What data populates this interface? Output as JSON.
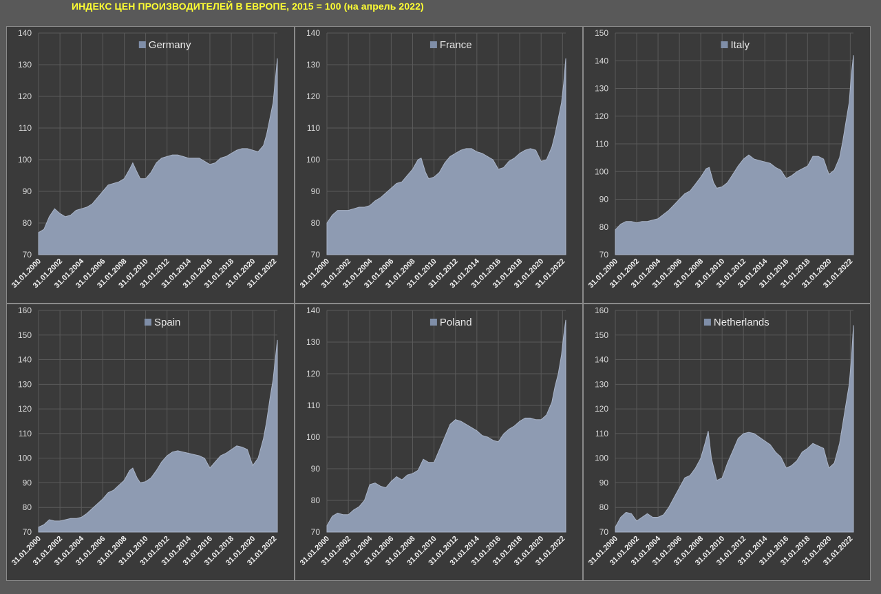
{
  "page": {
    "title": "ИНДЕКС ЦЕН ПРОИЗВОДИТЕЛЕЙ В ЕВРОПЕ, 2015 = 100 (на апрель 2022)"
  },
  "colors": {
    "area": "#8e9bb2",
    "area_edge": "#a9b4c8",
    "legend_swatch": "#7f8ea8",
    "grid": "#5a5a5a",
    "panel_bg": "#3a3a3a"
  },
  "chart_data": [
    {
      "type": "area",
      "legend": "Germany",
      "ylim": [
        70,
        140
      ],
      "yticks": [
        70,
        80,
        90,
        100,
        110,
        120,
        130,
        140
      ],
      "xlim": [
        2000.0,
        2022.3
      ],
      "xticks": [
        "31.01.2000",
        "31.01.2002",
        "31.01.2004",
        "31.01.2006",
        "31.01.2008",
        "31.01.2010",
        "31.01.2012",
        "31.01.2014",
        "31.01.2016",
        "31.01.2018",
        "31.01.2020",
        "31.01.2022"
      ],
      "x": [
        2000.0,
        2000.5,
        2001.0,
        2001.5,
        2002.0,
        2002.5,
        2003.0,
        2003.5,
        2004.0,
        2004.5,
        2005.0,
        2005.5,
        2006.0,
        2006.5,
        2007.0,
        2007.5,
        2008.0,
        2008.5,
        2008.8,
        2009.2,
        2009.5,
        2010.0,
        2010.5,
        2011.0,
        2011.5,
        2012.0,
        2012.5,
        2013.0,
        2013.5,
        2014.0,
        2014.5,
        2015.0,
        2015.5,
        2016.0,
        2016.5,
        2017.0,
        2017.5,
        2018.0,
        2018.5,
        2019.0,
        2019.5,
        2020.0,
        2020.5,
        2021.0,
        2021.3,
        2021.6,
        2021.9,
        2022.1,
        2022.3
      ],
      "y": [
        77,
        78,
        82,
        84.5,
        83,
        82,
        82.5,
        84,
        84.5,
        85,
        86,
        88,
        90,
        92,
        92.5,
        93,
        94,
        97,
        99,
        96,
        94,
        94,
        96,
        99,
        100.5,
        101,
        101.5,
        101.5,
        101,
        100.5,
        100.5,
        100.5,
        99.5,
        98.5,
        99,
        100.5,
        101,
        102,
        103,
        103.5,
        103.5,
        103,
        102.5,
        104.5,
        108,
        113,
        118,
        125,
        132
      ]
    },
    {
      "type": "area",
      "legend": "France",
      "ylim": [
        70,
        140
      ],
      "yticks": [
        70,
        80,
        90,
        100,
        110,
        120,
        130,
        140
      ],
      "xlim": [
        2000.0,
        2022.3
      ],
      "xticks": [
        "31.01.2000",
        "31.01.2002",
        "31.01.2004",
        "31.01.2006",
        "31.01.2008",
        "31.01.2010",
        "31.01.2012",
        "31.01.2014",
        "31.01.2016",
        "31.01.2018",
        "31.01.2020",
        "31.01.2022"
      ],
      "x": [
        2000.0,
        2000.5,
        2001.0,
        2001.5,
        2002.0,
        2002.5,
        2003.0,
        2003.5,
        2004.0,
        2004.5,
        2005.0,
        2005.5,
        2006.0,
        2006.5,
        2007.0,
        2007.5,
        2008.0,
        2008.5,
        2008.8,
        2009.2,
        2009.5,
        2010.0,
        2010.5,
        2011.0,
        2011.5,
        2012.0,
        2012.5,
        2013.0,
        2013.5,
        2014.0,
        2014.5,
        2015.0,
        2015.5,
        2016.0,
        2016.5,
        2017.0,
        2017.5,
        2018.0,
        2018.5,
        2019.0,
        2019.5,
        2020.0,
        2020.5,
        2021.0,
        2021.3,
        2021.6,
        2021.9,
        2022.1,
        2022.3
      ],
      "y": [
        80,
        82.5,
        84,
        84,
        84,
        84.5,
        85,
        85,
        85.5,
        87,
        88,
        89.5,
        91,
        92.5,
        93,
        95,
        97,
        100,
        100.5,
        96,
        94,
        94.5,
        96,
        99,
        101,
        102,
        103,
        103.5,
        103.5,
        102.5,
        102,
        101,
        100,
        97,
        97.5,
        99.5,
        100.5,
        102,
        103,
        103.5,
        103,
        99.5,
        100,
        104,
        108,
        113,
        118,
        124,
        132
      ]
    },
    {
      "type": "area",
      "legend": "Italy",
      "ylim": [
        70,
        150
      ],
      "yticks": [
        70,
        80,
        90,
        100,
        110,
        120,
        130,
        140,
        150
      ],
      "xlim": [
        2000.0,
        2022.3
      ],
      "xticks": [
        "31.01.2000",
        "31.01.2002",
        "31.01.2004",
        "31.01.2006",
        "31.01.2008",
        "31.01.2010",
        "31.01.2012",
        "31.01.2014",
        "31.01.2016",
        "31.01.2018",
        "31.01.2020",
        "31.01.2022"
      ],
      "x": [
        2000.0,
        2000.5,
        2001.0,
        2001.5,
        2002.0,
        2002.5,
        2003.0,
        2003.5,
        2004.0,
        2004.5,
        2005.0,
        2005.5,
        2006.0,
        2006.5,
        2007.0,
        2007.5,
        2008.0,
        2008.5,
        2008.8,
        2009.2,
        2009.5,
        2010.0,
        2010.5,
        2011.0,
        2011.5,
        2012.0,
        2012.5,
        2013.0,
        2013.5,
        2014.0,
        2014.5,
        2015.0,
        2015.5,
        2016.0,
        2016.5,
        2017.0,
        2017.5,
        2018.0,
        2018.5,
        2019.0,
        2019.5,
        2020.0,
        2020.5,
        2021.0,
        2021.3,
        2021.6,
        2021.9,
        2022.1,
        2022.3
      ],
      "y": [
        79,
        81,
        82,
        82,
        81.5,
        82,
        82,
        82.5,
        83,
        84.5,
        86,
        88,
        90,
        92,
        93,
        95.5,
        98,
        101,
        101.5,
        96,
        94,
        94.5,
        96,
        99,
        102,
        104.5,
        106,
        104.5,
        104,
        103.5,
        103,
        101.5,
        100.5,
        97.5,
        98.5,
        100,
        101,
        102,
        105.5,
        105.5,
        104.5,
        99,
        100.5,
        105,
        111,
        118,
        125,
        135,
        142
      ]
    },
    {
      "type": "area",
      "legend": "Spain",
      "ylim": [
        70,
        160
      ],
      "yticks": [
        70,
        80,
        90,
        100,
        110,
        120,
        130,
        140,
        150,
        160
      ],
      "xlim": [
        2000.0,
        2022.3
      ],
      "xticks": [
        "31.01.2000",
        "31.01.2002",
        "31.01.2004",
        "31.01.2006",
        "31.01.2008",
        "31.01.2010",
        "31.01.2012",
        "31.01.2014",
        "31.01.2016",
        "31.01.2018",
        "31.01.2020",
        "31.01.2022"
      ],
      "x": [
        2000.0,
        2000.5,
        2001.0,
        2001.5,
        2002.0,
        2002.5,
        2003.0,
        2003.5,
        2004.0,
        2004.5,
        2005.0,
        2005.5,
        2006.0,
        2006.5,
        2007.0,
        2007.5,
        2008.0,
        2008.5,
        2008.8,
        2009.2,
        2009.5,
        2010.0,
        2010.5,
        2011.0,
        2011.5,
        2012.0,
        2012.5,
        2013.0,
        2013.5,
        2014.0,
        2014.5,
        2015.0,
        2015.5,
        2016.0,
        2016.5,
        2017.0,
        2017.5,
        2018.0,
        2018.5,
        2019.0,
        2019.5,
        2020.0,
        2020.5,
        2021.0,
        2021.3,
        2021.6,
        2021.9,
        2022.1,
        2022.3
      ],
      "y": [
        72,
        73,
        75,
        74.5,
        74.5,
        75,
        75.5,
        75.5,
        76,
        77.5,
        79.5,
        81.5,
        83.5,
        86,
        87,
        89,
        91,
        95,
        96,
        92,
        90,
        90.5,
        92,
        95,
        98.5,
        101,
        102.5,
        103,
        102.5,
        102,
        101.5,
        101,
        100,
        96,
        98.5,
        101,
        102,
        103.5,
        105,
        104.5,
        103.5,
        97,
        100,
        108,
        115,
        124,
        132,
        140,
        148
      ]
    },
    {
      "type": "area",
      "legend": "Poland",
      "ylim": [
        70,
        140
      ],
      "yticks": [
        70,
        80,
        90,
        100,
        110,
        120,
        130,
        140
      ],
      "xlim": [
        2000.0,
        2022.3
      ],
      "xticks": [
        "31.01.2000",
        "31.01.2002",
        "31.01.2004",
        "31.01.2006",
        "31.01.2008",
        "31.01.2010",
        "31.01.2012",
        "31.01.2014",
        "31.01.2016",
        "31.01.2018",
        "31.01.2020",
        "31.01.2022"
      ],
      "x": [
        2000.0,
        2000.5,
        2001.0,
        2001.5,
        2002.0,
        2002.5,
        2003.0,
        2003.5,
        2004.0,
        2004.5,
        2005.0,
        2005.5,
        2006.0,
        2006.5,
        2007.0,
        2007.5,
        2008.0,
        2008.5,
        2009.0,
        2009.5,
        2010.0,
        2010.5,
        2011.0,
        2011.5,
        2012.0,
        2012.5,
        2013.0,
        2013.5,
        2014.0,
        2014.5,
        2015.0,
        2015.5,
        2016.0,
        2016.5,
        2017.0,
        2017.5,
        2018.0,
        2018.5,
        2019.0,
        2019.5,
        2020.0,
        2020.5,
        2021.0,
        2021.3,
        2021.6,
        2021.9,
        2022.1,
        2022.3
      ],
      "y": [
        72,
        75,
        76,
        75.5,
        75.5,
        77,
        78,
        80,
        85,
        85.5,
        84.5,
        84,
        86,
        87.5,
        86.5,
        88,
        88.5,
        89.5,
        93,
        92,
        92,
        96,
        100,
        104,
        105.5,
        105,
        104,
        103,
        102,
        100.5,
        100,
        99,
        98.5,
        101,
        102.5,
        103.5,
        105,
        106,
        106,
        105.5,
        105.5,
        107,
        111,
        116,
        120,
        126,
        132,
        137
      ]
    },
    {
      "type": "area",
      "legend": "Netherlands",
      "ylim": [
        70,
        160
      ],
      "yticks": [
        70,
        80,
        90,
        100,
        110,
        120,
        130,
        140,
        150,
        160
      ],
      "xlim": [
        2000.0,
        2022.3
      ],
      "xticks": [
        "31.01.2000",
        "31.01.2002",
        "31.01.2004",
        "31.01.2006",
        "31.01.2008",
        "31.01.2010",
        "31.01.2012",
        "31.01.2014",
        "31.01.2016",
        "31.01.2018",
        "31.01.2020",
        "31.01.2022"
      ],
      "x": [
        2000.0,
        2000.5,
        2001.0,
        2001.5,
        2002.0,
        2002.5,
        2003.0,
        2003.5,
        2004.0,
        2004.5,
        2005.0,
        2005.5,
        2006.0,
        2006.5,
        2007.0,
        2007.5,
        2008.0,
        2008.4,
        2008.7,
        2009.0,
        2009.5,
        2010.0,
        2010.5,
        2011.0,
        2011.5,
        2012.0,
        2012.5,
        2013.0,
        2013.5,
        2014.0,
        2014.5,
        2015.0,
        2015.5,
        2016.0,
        2016.5,
        2017.0,
        2017.5,
        2018.0,
        2018.5,
        2019.0,
        2019.5,
        2020.0,
        2020.5,
        2021.0,
        2021.3,
        2021.6,
        2021.9,
        2022.1,
        2022.3
      ],
      "y": [
        72,
        76,
        78,
        77.5,
        74.5,
        76,
        77.5,
        76,
        76,
        77,
        80,
        84,
        88,
        92,
        93,
        96,
        100,
        106,
        111,
        100,
        91,
        92,
        98,
        103,
        108,
        110,
        110.5,
        110,
        108.5,
        107,
        105.5,
        102.5,
        100.5,
        96,
        97,
        99,
        102.5,
        104,
        106,
        105,
        104,
        96,
        98,
        106,
        114,
        122,
        130,
        140,
        154
      ]
    }
  ]
}
